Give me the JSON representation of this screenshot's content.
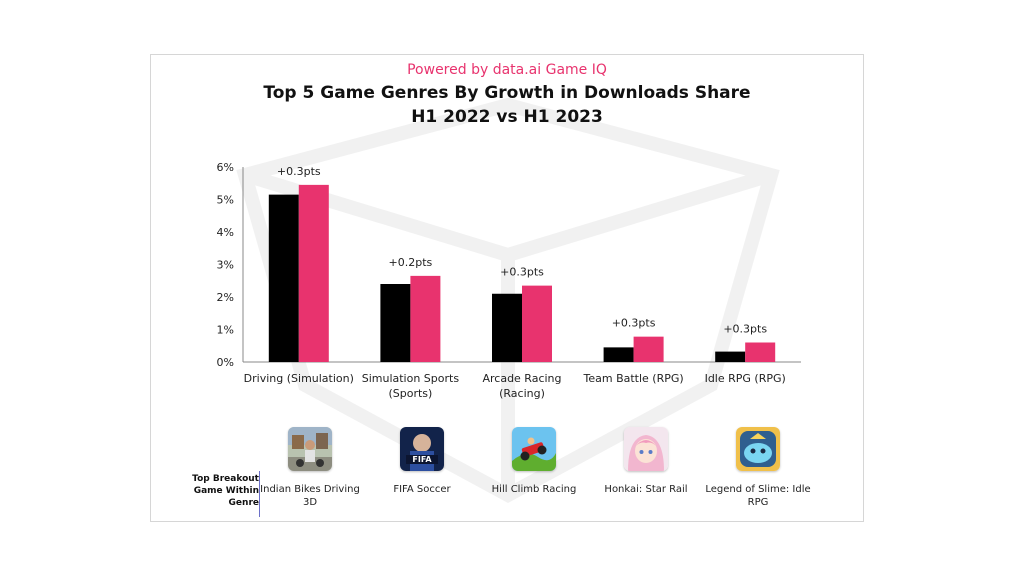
{
  "header": {
    "powered_by": "Powered by data.ai Game IQ",
    "title_line1": "Top 5 Game Genres By Growth in Downloads Share",
    "title_line2": "H1 2022 vs H1 2023"
  },
  "chart_data": {
    "type": "bar",
    "title": "Top 5 Game Genres By Growth in Downloads Share H1 2022 vs H1 2023",
    "categories": [
      [
        "Driving (Simulation)"
      ],
      [
        "Simulation Sports",
        "(Sports)"
      ],
      [
        "Arcade Racing",
        "(Racing)"
      ],
      [
        "Team Battle (RPG)"
      ],
      [
        "Idle RPG (RPG)"
      ]
    ],
    "series": [
      {
        "values": [
          5.15,
          2.4,
          2.1,
          0.45,
          0.32
        ],
        "color": "#000000"
      },
      {
        "values": [
          5.45,
          2.65,
          2.35,
          0.78,
          0.6
        ],
        "color": "#e8336e"
      }
    ],
    "annotations": [
      "+0.3pts",
      "+0.2pts",
      "+0.3pts",
      "+0.3pts",
      "+0.3pts"
    ],
    "ylim": [
      0,
      6
    ],
    "yticks": [
      "0%",
      "1%",
      "2%",
      "3%",
      "4%",
      "5%",
      "6%"
    ],
    "grid": false,
    "xlabel": "",
    "ylabel": ""
  },
  "games": {
    "row_label": "Top Breakout Game Within Genre",
    "items": [
      {
        "name": "Indian Bikes Driving 3D",
        "icon": "indian-bikes-game-icon"
      },
      {
        "name": "FIFA Soccer",
        "icon": "fifa-soccer-game-icon"
      },
      {
        "name": "Hill Climb Racing",
        "icon": "hill-climb-racing-game-icon"
      },
      {
        "name": "Honkai: Star Rail",
        "icon": "honkai-star-rail-game-icon"
      },
      {
        "name": "Legend of Slime: Idle RPG",
        "icon": "legend-of-slime-game-icon"
      }
    ]
  }
}
